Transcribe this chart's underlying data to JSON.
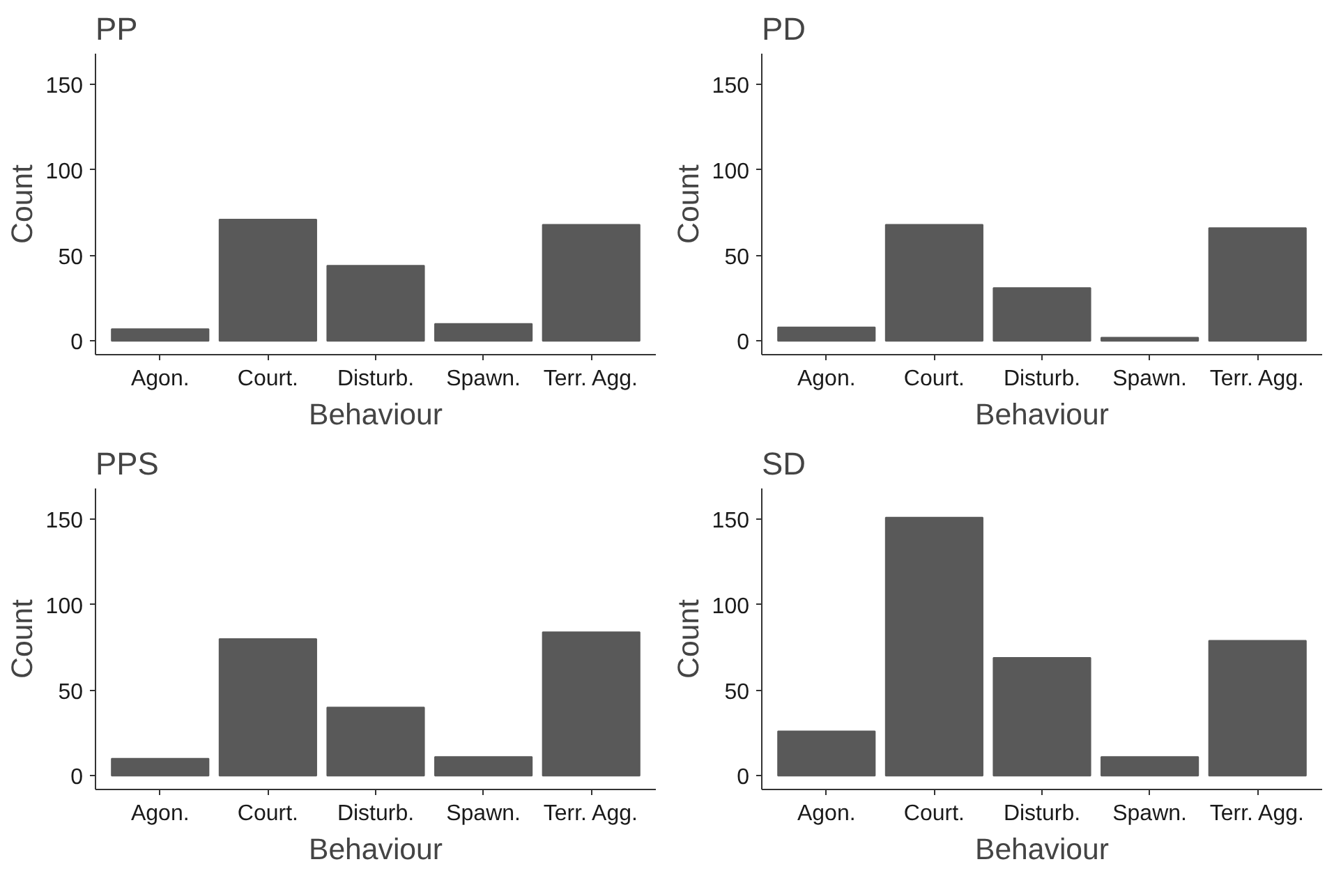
{
  "chart_data": [
    {
      "type": "bar",
      "title": "PP",
      "xlabel": "Behaviour",
      "ylabel": "Count",
      "categories": [
        "Agon.",
        "Court.",
        "Disturb.",
        "Spawn.",
        "Terr. Agg."
      ],
      "values": [
        7,
        71,
        44,
        10,
        68
      ],
      "color": "#595959",
      "ylim": [
        -8,
        168
      ],
      "yticks": [
        0,
        50,
        100,
        150
      ],
      "grid": false
    },
    {
      "type": "bar",
      "title": "PD",
      "xlabel": "Behaviour",
      "ylabel": "Count",
      "categories": [
        "Agon.",
        "Court.",
        "Disturb.",
        "Spawn.",
        "Terr. Agg."
      ],
      "values": [
        8,
        68,
        31,
        2,
        66
      ],
      "color": "#595959",
      "ylim": [
        -8,
        168
      ],
      "yticks": [
        0,
        50,
        100,
        150
      ],
      "grid": false
    },
    {
      "type": "bar",
      "title": "PPS",
      "xlabel": "Behaviour",
      "ylabel": "Count",
      "categories": [
        "Agon.",
        "Court.",
        "Disturb.",
        "Spawn.",
        "Terr. Agg."
      ],
      "values": [
        10,
        80,
        40,
        11,
        84
      ],
      "color": "#595959",
      "ylim": [
        -8,
        168
      ],
      "yticks": [
        0,
        50,
        100,
        150
      ],
      "grid": false
    },
    {
      "type": "bar",
      "title": "SD",
      "xlabel": "Behaviour",
      "ylabel": "Count",
      "categories": [
        "Agon.",
        "Court.",
        "Disturb.",
        "Spawn.",
        "Terr. Agg."
      ],
      "values": [
        26,
        151,
        69,
        11,
        79
      ],
      "color": "#595959",
      "ylim": [
        -8,
        168
      ],
      "yticks": [
        0,
        50,
        100,
        150
      ],
      "grid": false
    }
  ]
}
